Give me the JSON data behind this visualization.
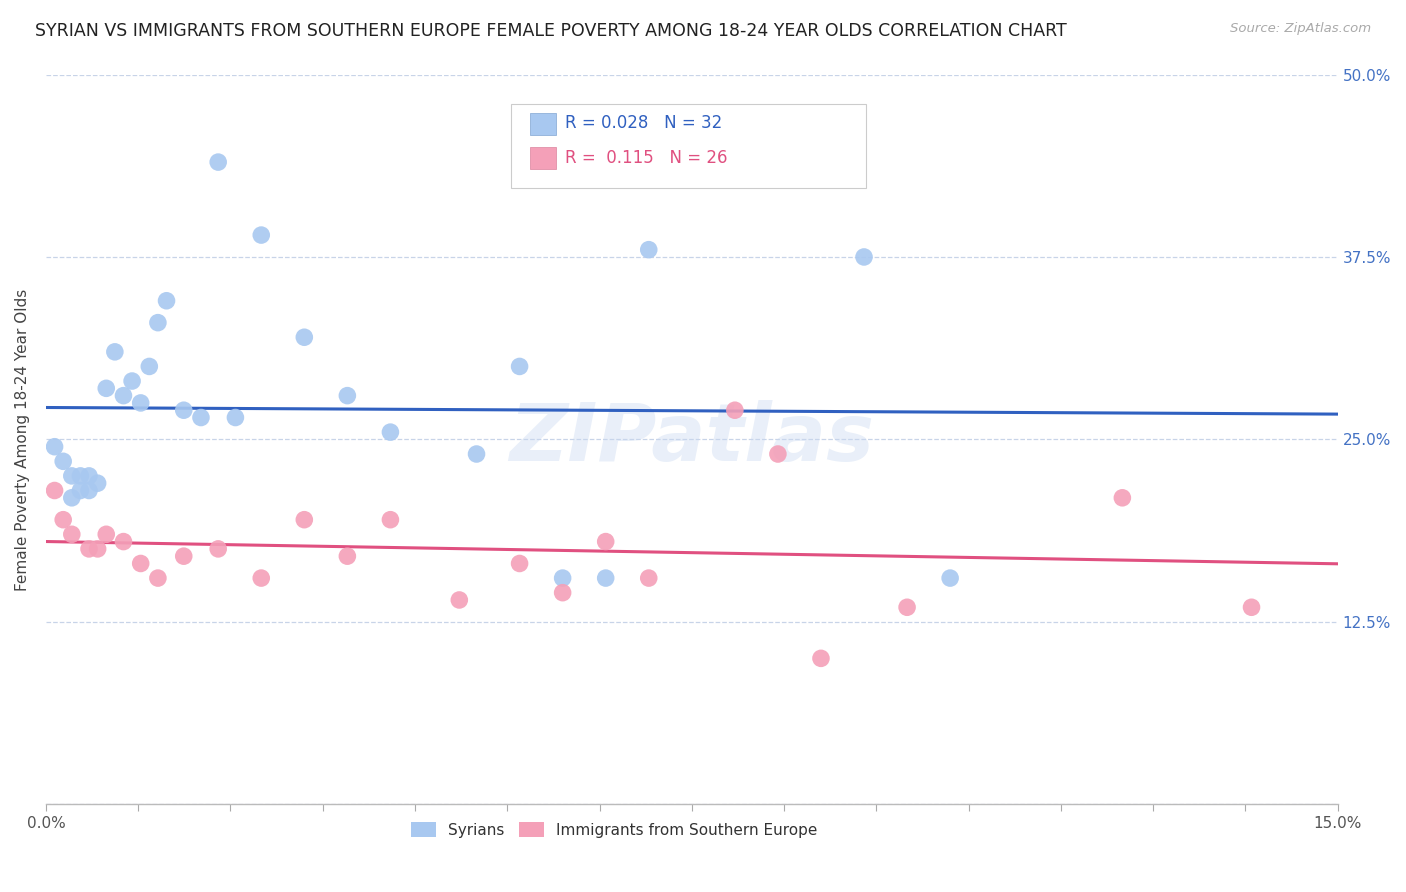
{
  "title": "SYRIAN VS IMMIGRANTS FROM SOUTHERN EUROPE FEMALE POVERTY AMONG 18-24 YEAR OLDS CORRELATION CHART",
  "source": "Source: ZipAtlas.com",
  "ylabel": "Female Poverty Among 18-24 Year Olds",
  "xlim": [
    0.0,
    0.15
  ],
  "ylim": [
    0.0,
    0.5
  ],
  "blue_color": "#A8C8F0",
  "pink_color": "#F4A0B8",
  "line_blue": "#3060C0",
  "line_pink": "#E05080",
  "background_color": "#FFFFFF",
  "grid_color": "#C8D4E8",
  "watermark": "ZIPatlas",
  "syrians_x": [
    0.001,
    0.002,
    0.003,
    0.003,
    0.004,
    0.004,
    0.005,
    0.005,
    0.006,
    0.007,
    0.008,
    0.009,
    0.01,
    0.011,
    0.012,
    0.013,
    0.014,
    0.016,
    0.018,
    0.02,
    0.022,
    0.025,
    0.03,
    0.035,
    0.04,
    0.05,
    0.055,
    0.06,
    0.065,
    0.07,
    0.095,
    0.105
  ],
  "syrians_y": [
    0.245,
    0.235,
    0.225,
    0.21,
    0.225,
    0.215,
    0.225,
    0.215,
    0.22,
    0.285,
    0.31,
    0.28,
    0.29,
    0.275,
    0.3,
    0.33,
    0.345,
    0.27,
    0.265,
    0.44,
    0.265,
    0.39,
    0.32,
    0.28,
    0.255,
    0.24,
    0.3,
    0.155,
    0.155,
    0.38,
    0.375,
    0.155
  ],
  "southern_eu_x": [
    0.001,
    0.002,
    0.003,
    0.005,
    0.006,
    0.007,
    0.009,
    0.011,
    0.013,
    0.016,
    0.02,
    0.025,
    0.03,
    0.035,
    0.04,
    0.048,
    0.055,
    0.06,
    0.065,
    0.07,
    0.08,
    0.085,
    0.09,
    0.1,
    0.125,
    0.14
  ],
  "southern_eu_y": [
    0.215,
    0.195,
    0.185,
    0.175,
    0.175,
    0.185,
    0.18,
    0.165,
    0.155,
    0.17,
    0.175,
    0.155,
    0.195,
    0.17,
    0.195,
    0.14,
    0.165,
    0.145,
    0.18,
    0.155,
    0.27,
    0.24,
    0.1,
    0.135,
    0.21,
    0.135
  ]
}
